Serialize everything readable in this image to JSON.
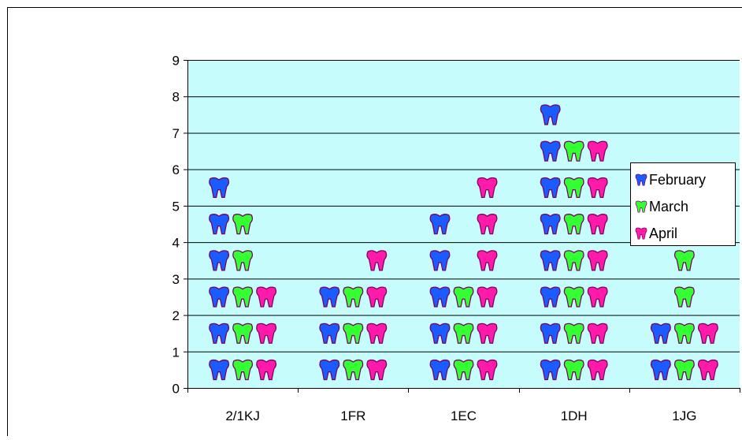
{
  "chart_data": {
    "type": "bar",
    "title": "",
    "xlabel": "",
    "ylabel": "",
    "categories": [
      "2/1KJ",
      "1FR",
      "1EC",
      "1DH",
      "1JG"
    ],
    "series": [
      {
        "name": "February",
        "color": "#1a5cff",
        "values": [
          6,
          3,
          5,
          8,
          2
        ]
      },
      {
        "name": "March",
        "color": "#33ff33",
        "values": [
          5,
          3,
          3,
          7,
          4
        ]
      },
      {
        "name": "April",
        "color": "#ff1aaa",
        "values": [
          3,
          4,
          6,
          7,
          2
        ]
      }
    ],
    "ylim": [
      0,
      9
    ],
    "yticks": [
      "0",
      "1",
      "2",
      "3",
      "4",
      "5",
      "6",
      "7",
      "8",
      "9"
    ],
    "grid": true,
    "legend_position": "right",
    "plot_background": "#c6fcfc",
    "mark_icon": "tooth-icon"
  }
}
